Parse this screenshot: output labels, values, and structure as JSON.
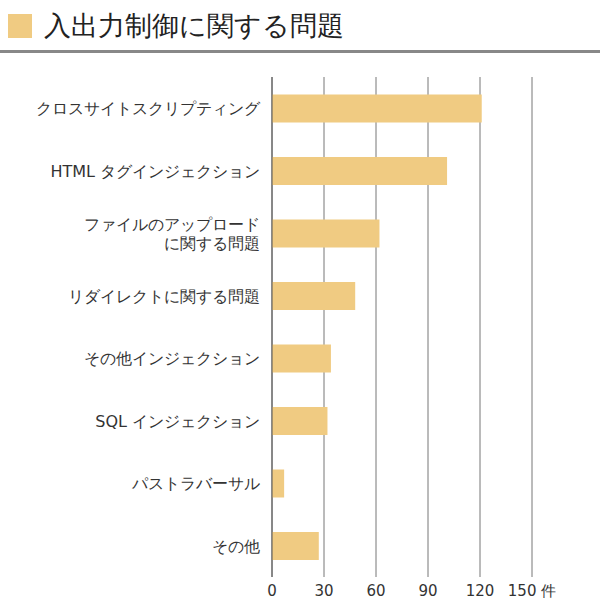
{
  "chart_data": {
    "type": "bar",
    "title": "入出力制御に関する問題",
    "orientation": "horizontal",
    "categories": [
      "クロスサイトスクリプティング",
      "HTML タグインジェクション",
      "ファイルのアップロード\nに関する問題",
      "リダイレクトに関する問題",
      "その他インジェクション",
      "SQL インジェクション",
      "パストラバーサル",
      "その他"
    ],
    "values": [
      121,
      101,
      62,
      48,
      34,
      32,
      7,
      27
    ],
    "color": "#f0cb82",
    "xlim": [
      0,
      150
    ],
    "xticks": [
      0,
      30,
      60,
      90,
      120,
      {
        "value": 150,
        "label": "150 件"
      }
    ],
    "grid": true
  }
}
